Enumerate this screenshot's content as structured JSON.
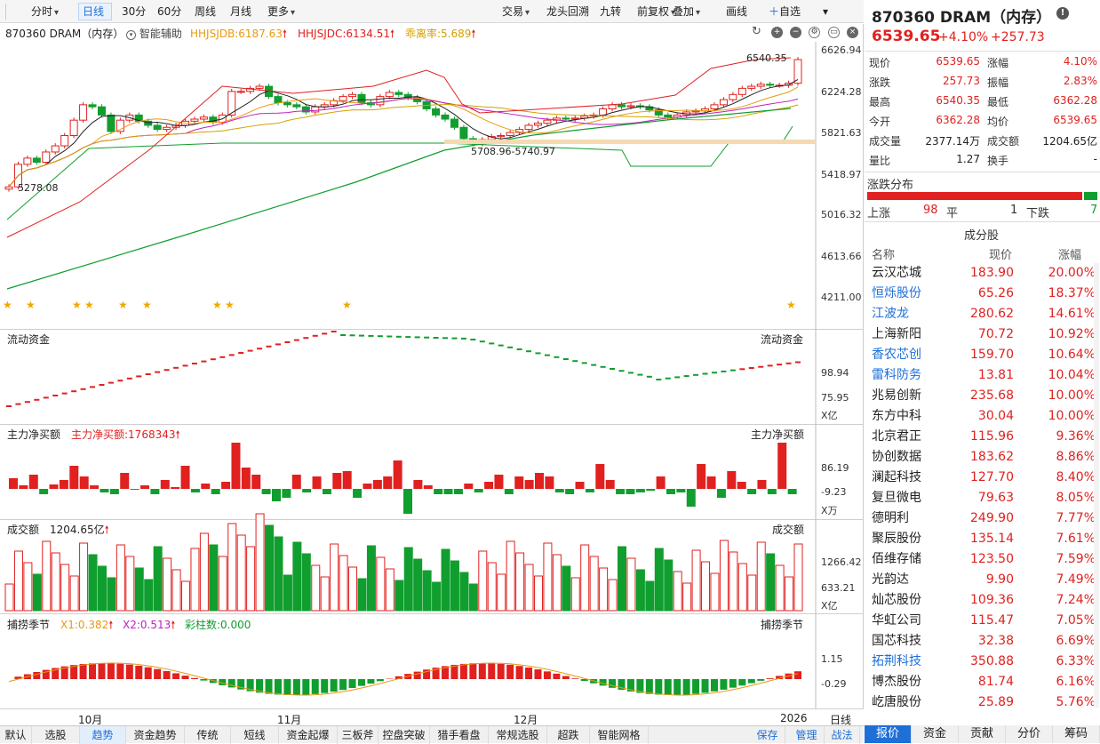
{
  "toolbar": {
    "left_items": [
      {
        "label": "分时",
        "dd": true
      },
      {
        "label": "日线",
        "active": true
      },
      {
        "label": "30分"
      },
      {
        "label": "60分"
      },
      {
        "label": "周线"
      },
      {
        "label": "月线"
      },
      {
        "label": "更多",
        "dd": true
      }
    ],
    "right_items": [
      {
        "label": "交易",
        "dd": true
      },
      {
        "label": "龙头回溯"
      },
      {
        "label": "九转"
      },
      {
        "label": "前复权",
        "dd": true
      },
      {
        "label": "叠加",
        "dd": true
      },
      {
        "label": "画线"
      },
      {
        "label": "自选"
      }
    ]
  },
  "main": {
    "title": "870360 DRAM（内存）",
    "assist": "智能辅助",
    "ind1": "HHJSJDB:6187.63",
    "ind2": "HHJSJDC:6134.51",
    "ind3": "乖离率:5.689",
    "yticks": [
      "6626.94",
      "6224.28",
      "5821.63",
      "5418.97",
      "5016.32",
      "4613.66",
      "4211.00"
    ],
    "high_label": "6540.35",
    "low_label": "5278.08",
    "mid_label": "5708.96-5740.97"
  },
  "flow": {
    "title": "流动资金",
    "title_right": "流动资金",
    "yticks": [
      "98.94",
      "75.95"
    ],
    "unit": "X亿"
  },
  "net": {
    "title": "主力净买额",
    "value": "主力净买额:1768343",
    "title_right": "主力净买额",
    "yticks": [
      "86.19",
      "-9.23"
    ],
    "unit": "X万"
  },
  "vol": {
    "title": "成交额",
    "value": "1204.65亿",
    "title_right": "成交额",
    "yticks": [
      "1266.42",
      "633.21"
    ],
    "unit": "X亿"
  },
  "season": {
    "title": "捕捞季节",
    "x1": "X1:0.382",
    "x2": "X2:0.513",
    "bars": "彩柱数:0.000",
    "title_right": "捕捞季节",
    "yticks": [
      "1.15",
      "-0.29"
    ]
  },
  "xaxis": {
    "labels": [
      "10月",
      "11月",
      "12月",
      "2026"
    ],
    "period": "日线"
  },
  "bottom_tabs": [
    "默认",
    "选股",
    "趋势",
    "资金趋势",
    "传统",
    "短线",
    "资金起爆",
    "三板斧",
    "控盘突破",
    "猎手看盘",
    "常规选股",
    "超跌",
    "智能网格"
  ],
  "bottom_active": "趋势",
  "bottom_right": [
    "保存",
    "管理",
    "战法"
  ],
  "right": {
    "title": "870360 DRAM（内存）",
    "price": "6539.65",
    "chg_pct": "+4.10%",
    "chg": "+257.73",
    "quote": [
      {
        "k1": "现价",
        "v1": "6539.65",
        "k2": "涨幅",
        "v2": "4.10%",
        "c": "red"
      },
      {
        "k1": "涨跌",
        "v1": "257.73",
        "k2": "振幅",
        "v2": "2.83%",
        "c": "red"
      },
      {
        "k1": "最高",
        "v1": "6540.35",
        "k2": "最低",
        "v2": "6362.28",
        "c": "red"
      },
      {
        "k1": "今开",
        "v1": "6362.28",
        "k2": "均价",
        "v2": "6539.65",
        "c": "red"
      }
    ],
    "vol_label": "成交量",
    "vol": "2377.14万",
    "amt_label": "成交额",
    "amt": "1204.65亿",
    "ratio_label": "量比",
    "ratio": "1.27",
    "turn_label": "换手",
    "turn": "-",
    "dist_title": "涨跌分布",
    "up_label": "上涨",
    "up": "98",
    "flat_label": "平",
    "flat": "1",
    "down_label": "下跌",
    "down": "7",
    "comp_title": "成分股",
    "headers": [
      "名称",
      "现价",
      "涨幅"
    ],
    "components": [
      {
        "name": "云汉芯城",
        "price": "183.90",
        "chg": "20.00%",
        "blue": false
      },
      {
        "name": "恒烁股份",
        "price": "65.26",
        "chg": "18.37%",
        "blue": true
      },
      {
        "name": "江波龙",
        "price": "280.62",
        "chg": "14.61%",
        "blue": true
      },
      {
        "name": "上海新阳",
        "price": "70.72",
        "chg": "10.92%",
        "blue": false
      },
      {
        "name": "香农芯创",
        "price": "159.70",
        "chg": "10.64%",
        "blue": true
      },
      {
        "name": "雷科防务",
        "price": "13.81",
        "chg": "10.04%",
        "blue": true
      },
      {
        "name": "兆易创新",
        "price": "235.68",
        "chg": "10.00%",
        "blue": false
      },
      {
        "name": "东方中科",
        "price": "30.04",
        "chg": "10.00%",
        "blue": false
      },
      {
        "name": "北京君正",
        "price": "115.96",
        "chg": "9.36%",
        "blue": false
      },
      {
        "name": "协创数据",
        "price": "183.62",
        "chg": "8.86%",
        "blue": false
      },
      {
        "name": "澜起科技",
        "price": "127.70",
        "chg": "8.40%",
        "blue": false
      },
      {
        "name": "复旦微电",
        "price": "79.63",
        "chg": "8.05%",
        "blue": false
      },
      {
        "name": "德明利",
        "price": "249.90",
        "chg": "7.77%",
        "blue": false
      },
      {
        "name": "聚辰股份",
        "price": "135.14",
        "chg": "7.61%",
        "blue": false
      },
      {
        "name": "佰维存储",
        "price": "123.50",
        "chg": "7.59%",
        "blue": false
      },
      {
        "name": "光韵达",
        "price": "9.90",
        "chg": "7.49%",
        "blue": false
      },
      {
        "name": "灿芯股份",
        "price": "109.36",
        "chg": "7.24%",
        "blue": false
      },
      {
        "name": "华虹公司",
        "price": "115.47",
        "chg": "7.05%",
        "blue": false
      },
      {
        "name": "国芯科技",
        "price": "32.38",
        "chg": "6.69%",
        "blue": false
      },
      {
        "name": "拓荆科技",
        "price": "350.88",
        "chg": "6.33%",
        "blue": true
      },
      {
        "name": "博杰股份",
        "price": "81.74",
        "chg": "6.16%",
        "blue": false
      },
      {
        "name": "屹唐股份",
        "price": "25.89",
        "chg": "5.76%",
        "blue": false
      }
    ],
    "tabs": [
      "报价",
      "资金",
      "贡献",
      "分价",
      "筹码"
    ],
    "tab_active": "报价"
  },
  "colors": {
    "up": "#e0211f",
    "down": "#109e2e",
    "accent": "#1e6fd8"
  }
}
